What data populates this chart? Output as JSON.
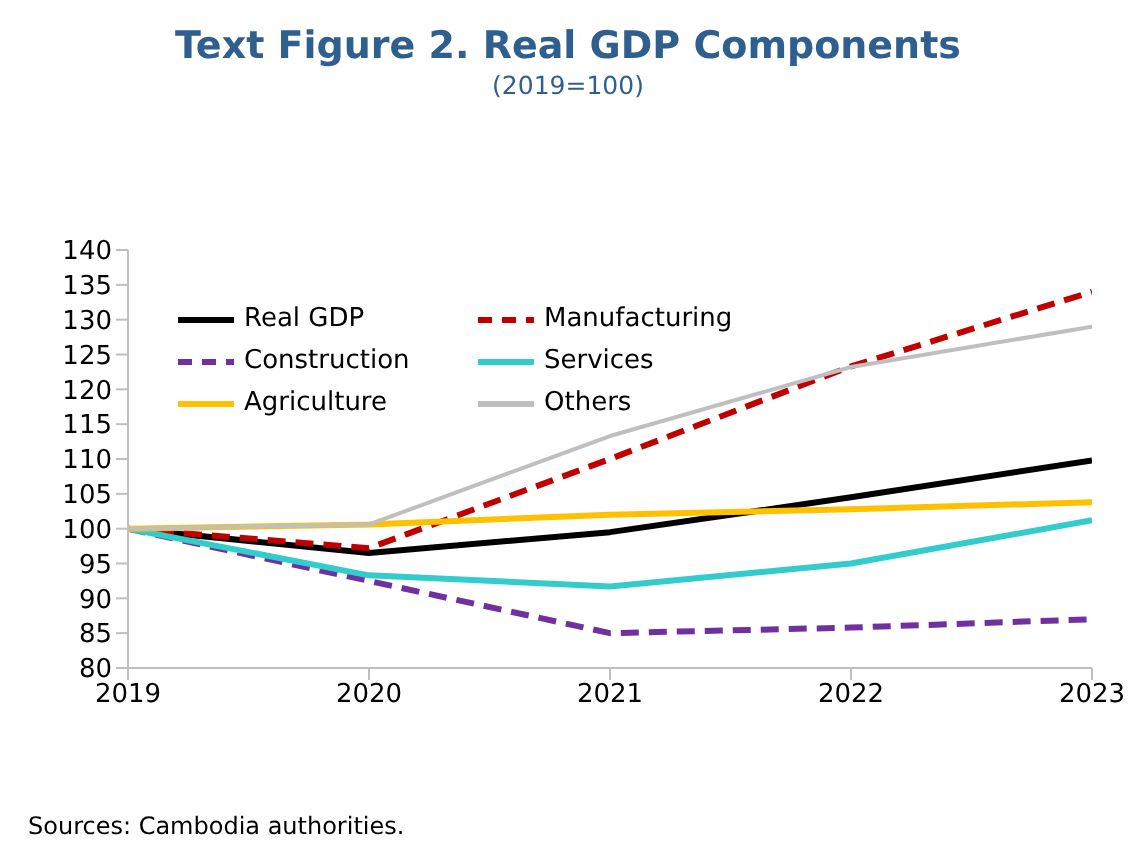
{
  "chart_data": {
    "type": "line",
    "title": "Text Figure 2. Real GDP Components",
    "subtitle": "(2019=100)",
    "x": [
      2019,
      2020,
      2021,
      2022,
      2023
    ],
    "xlim": [
      2019,
      2023
    ],
    "xticks": [
      2019,
      2020,
      2021,
      2022,
      2023
    ],
    "ylim": [
      80,
      140
    ],
    "yticks": [
      80,
      85,
      90,
      95,
      100,
      105,
      110,
      115,
      120,
      125,
      130,
      135,
      140
    ],
    "grid": false,
    "legend": "top left",
    "marker": "none",
    "series": [
      {
        "name": "Real GDP",
        "color": "#000000",
        "line_style": "solid",
        "values": [
          100,
          96.5,
          99.5,
          104.5,
          109.8
        ]
      },
      {
        "name": "Manufacturing",
        "color": "#c00000",
        "line_style": "dashed",
        "values": [
          100,
          97.2,
          110,
          123.3,
          134
        ]
      },
      {
        "name": "Construction",
        "color": "#7030a0",
        "line_style": "dashed",
        "values": [
          100,
          92.5,
          85,
          85.8,
          87
        ]
      },
      {
        "name": "Services",
        "color": "#33cccc",
        "line_style": "solid",
        "values": [
          100,
          93.3,
          91.7,
          95,
          101.2
        ]
      },
      {
        "name": "Agriculture",
        "color": "#ffc000",
        "line_style": "solid",
        "values": [
          100,
          100.6,
          102,
          102.8,
          103.8
        ]
      },
      {
        "name": "Others",
        "color": "#bfbfbf",
        "line_style": "solid",
        "values": [
          100,
          100.6,
          113.3,
          123.2,
          129
        ]
      }
    ],
    "annotations": [
      "Sources: Cambodia authorities."
    ]
  }
}
